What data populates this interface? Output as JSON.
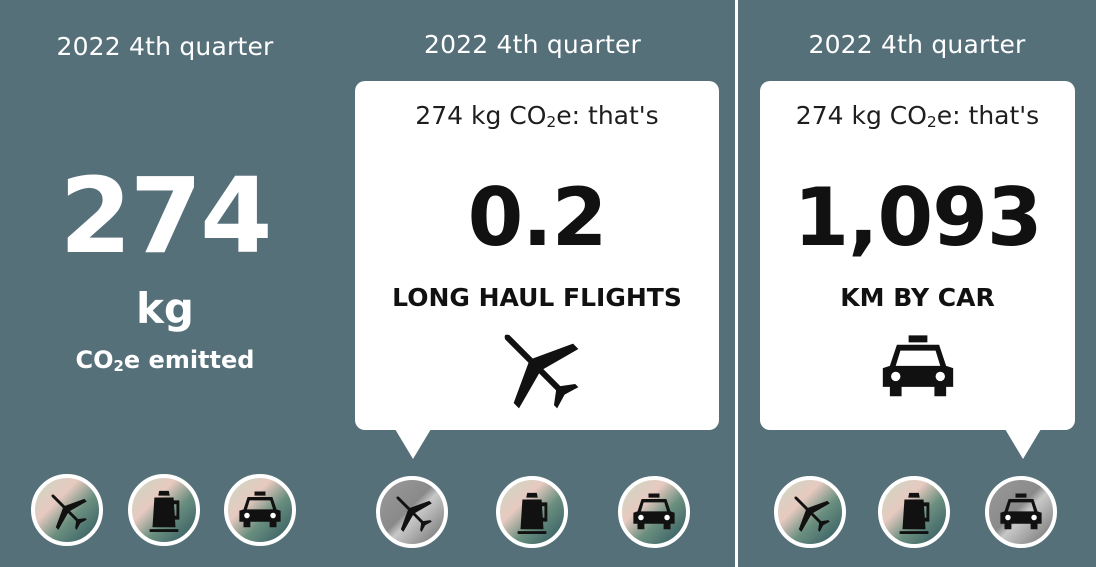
{
  "panels": [
    {
      "quarter": "2022 4th quarter",
      "value": "274",
      "unit": "kg",
      "emitted": {
        "prefix": "CO",
        "sub": "2",
        "suffix": "e emitted"
      },
      "buttons": [
        "plane-icon",
        "kettle-icon",
        "car-icon"
      ]
    },
    {
      "quarter": "2022 4th quarter",
      "card": {
        "head": {
          "prefix": "274 kg CO",
          "sub": "2",
          "suffix": "e: that's"
        },
        "value": "0.2",
        "label": "LONG HAUL FLIGHTS",
        "icon": "plane-icon"
      },
      "active_button": "plane-icon",
      "buttons": [
        "plane-icon",
        "kettle-icon",
        "car-icon"
      ]
    },
    {
      "quarter": "2022 4th quarter",
      "card": {
        "head": {
          "prefix": "274 kg CO",
          "sub": "2",
          "suffix": "e: that's"
        },
        "value": "1,093",
        "label": "KM BY CAR",
        "icon": "car-icon"
      },
      "active_button": "car-icon",
      "buttons": [
        "plane-icon",
        "kettle-icon",
        "car-icon"
      ]
    }
  ],
  "colors": {
    "background": "#56707a",
    "card": "#ffffff",
    "text_dark": "#111111"
  }
}
